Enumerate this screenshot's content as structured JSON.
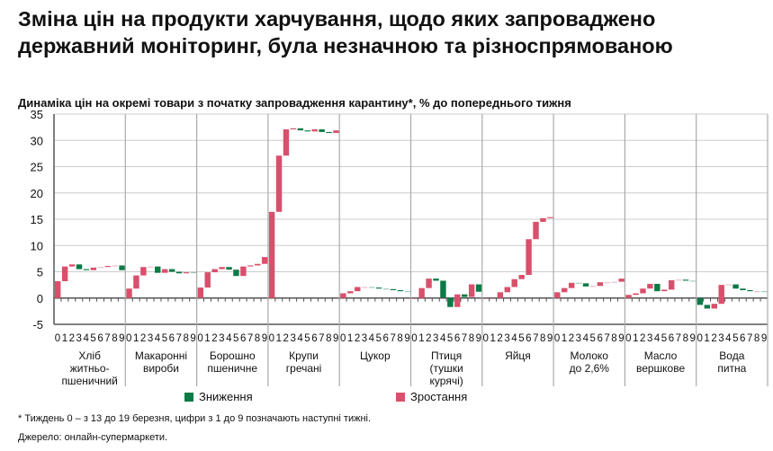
{
  "title": "Зміна цін на продукти харчування, щодо яких запроваджено державний моніторинг, була незначною та різноспрямованою",
  "subtitle": "Динаміка цін на окремі товари з початку запровадження карантину*, % до попереднього тижня",
  "legend": {
    "decrease": "Зниження",
    "increase": "Зростання"
  },
  "footnote": "* Тиждень 0 – з 13 до 19 березня, цифри з 1 до 9 позначають наступні тижні.",
  "source": "Джерело: онлайн-супермаркети.",
  "colors": {
    "decrease": "#0b7a46",
    "increase": "#d9506c"
  },
  "chart_data": {
    "type": "waterfall",
    "ylim": [
      -5,
      35
    ],
    "yticks": [
      "-5",
      "0",
      "5",
      "10",
      "15",
      "20",
      "25",
      "30",
      "35"
    ],
    "week_labels": [
      "0",
      "1",
      "2",
      "3",
      "4",
      "5",
      "6",
      "7",
      "8",
      "9"
    ],
    "grid": true,
    "legend_position": "bottom",
    "groups": [
      {
        "label": "Хліб житньо-пшеничний",
        "label_lines": [
          "Хліб",
          "житньо-",
          "пшеничний"
        ],
        "cumulative": [
          3.2,
          6.0,
          6.4,
          5.5,
          5.3,
          5.8,
          5.9,
          6.1,
          6.2,
          5.3
        ]
      },
      {
        "label": "Макаронні вироби",
        "label_lines": [
          "Макаронні",
          "вироби"
        ],
        "cumulative": [
          1.8,
          4.3,
          5.9,
          6.0,
          4.8,
          5.5,
          5.0,
          4.7,
          4.9,
          4.8
        ]
      },
      {
        "label": "Борошно пшеничне",
        "label_lines": [
          "Борошно",
          "пшеничне"
        ],
        "cumulative": [
          2.0,
          4.9,
          5.5,
          5.9,
          5.4,
          4.2,
          6.0,
          6.2,
          6.5,
          7.8
        ]
      },
      {
        "label": "Крупи гречані",
        "label_lines": [
          "Крупи",
          "гречані"
        ],
        "cumulative": [
          16.4,
          27.1,
          32.1,
          32.3,
          31.9,
          31.7,
          32.1,
          31.6,
          31.4,
          31.9
        ]
      },
      {
        "label": "Цукор",
        "label_lines": [
          "Цукор"
        ],
        "cumulative": [
          0.9,
          1.3,
          2.1,
          2.1,
          2.0,
          1.8,
          1.7,
          1.5,
          1.3,
          1.2
        ]
      },
      {
        "label": "Птиця (тушки курячі)",
        "label_lines": [
          "Птиця",
          "(тушки",
          "курячі)"
        ],
        "cumulative": [
          0,
          1.9,
          3.7,
          3.3,
          0.1,
          -1.7,
          0.7,
          0.2,
          2.6,
          1.2
        ]
      },
      {
        "label": "Яйця",
        "label_lines": [
          "Яйця"
        ],
        "cumulative": [
          0,
          0,
          1.1,
          2.1,
          3.6,
          4.4,
          11.2,
          14.5,
          15.2,
          15.4
        ]
      },
      {
        "label": "Молоко до 2,6%",
        "label_lines": [
          "Молоко",
          "до 2,6%"
        ],
        "cumulative": [
          1.1,
          1.9,
          2.9,
          2.8,
          2.2,
          2.3,
          3.0,
          3.0,
          3.1,
          3.7
        ]
      },
      {
        "label": "Масло вершкове",
        "label_lines": [
          "Масло",
          "вершкове"
        ],
        "cumulative": [
          0.6,
          0.9,
          1.8,
          2.7,
          1.3,
          1.6,
          3.4,
          3.5,
          3.3,
          3.2
        ]
      },
      {
        "label": "Вода питна",
        "label_lines": [
          "Вода",
          "питна"
        ],
        "cumulative": [
          -1.3,
          -2.0,
          -1.1,
          2.5,
          2.6,
          1.8,
          1.5,
          1.3,
          1.3,
          1.2
        ]
      }
    ]
  }
}
